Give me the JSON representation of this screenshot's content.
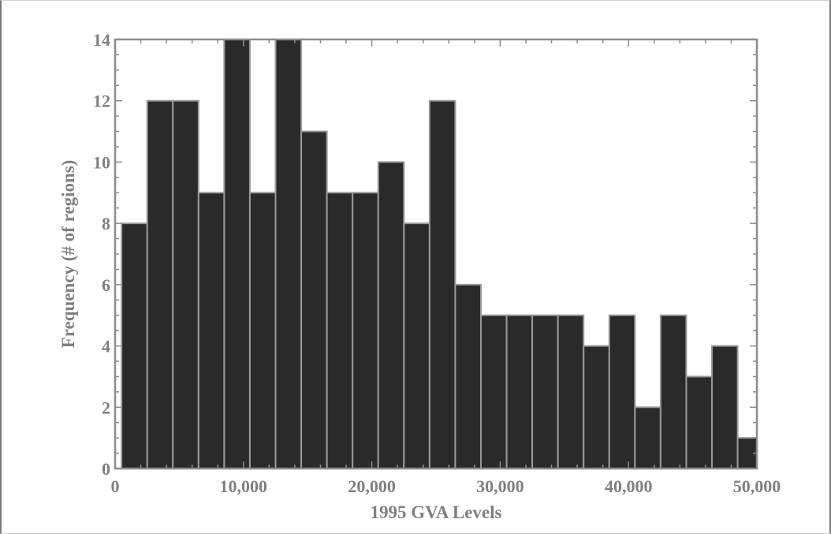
{
  "chart_data": {
    "type": "histogram",
    "title": "",
    "xlabel": "1995 GVA Levels",
    "ylabel": "Frequency (# of regions)",
    "xlim": [
      0,
      50000
    ],
    "ylim": [
      0,
      14
    ],
    "bin_width": 2000,
    "bins": [
      {
        "start": 500,
        "end": 2500,
        "count": 8
      },
      {
        "start": 2500,
        "end": 4500,
        "count": 12
      },
      {
        "start": 4500,
        "end": 6500,
        "count": 12
      },
      {
        "start": 6500,
        "end": 8500,
        "count": 9
      },
      {
        "start": 8500,
        "end": 10500,
        "count": 14
      },
      {
        "start": 10500,
        "end": 12500,
        "count": 9
      },
      {
        "start": 12500,
        "end": 14500,
        "count": 14
      },
      {
        "start": 14500,
        "end": 16500,
        "count": 11
      },
      {
        "start": 16500,
        "end": 18500,
        "count": 9
      },
      {
        "start": 18500,
        "end": 20500,
        "count": 9
      },
      {
        "start": 20500,
        "end": 22500,
        "count": 10
      },
      {
        "start": 22500,
        "end": 24500,
        "count": 8
      },
      {
        "start": 24500,
        "end": 26500,
        "count": 12
      },
      {
        "start": 26500,
        "end": 28500,
        "count": 6
      },
      {
        "start": 28500,
        "end": 30500,
        "count": 5
      },
      {
        "start": 30500,
        "end": 32500,
        "count": 5
      },
      {
        "start": 32500,
        "end": 34500,
        "count": 5
      },
      {
        "start": 34500,
        "end": 36500,
        "count": 5
      },
      {
        "start": 36500,
        "end": 38500,
        "count": 4
      },
      {
        "start": 38500,
        "end": 40500,
        "count": 5
      },
      {
        "start": 40500,
        "end": 42500,
        "count": 2
      },
      {
        "start": 42500,
        "end": 44500,
        "count": 5
      },
      {
        "start": 44500,
        "end": 46500,
        "count": 3
      },
      {
        "start": 46500,
        "end": 48500,
        "count": 4
      },
      {
        "start": 48500,
        "end": 50000,
        "count": 1
      }
    ],
    "xticks": [
      {
        "value": 0,
        "label": "0"
      },
      {
        "value": 10000,
        "label": "10,000"
      },
      {
        "value": 20000,
        "label": "20,000"
      },
      {
        "value": 30000,
        "label": "30,000"
      },
      {
        "value": 40000,
        "label": "40,000"
      },
      {
        "value": 50000,
        "label": "50,000"
      }
    ],
    "yticks": [
      {
        "value": 0,
        "label": "0"
      },
      {
        "value": 2,
        "label": "2"
      },
      {
        "value": 4,
        "label": "4"
      },
      {
        "value": 6,
        "label": "6"
      },
      {
        "value": 8,
        "label": "8"
      },
      {
        "value": 10,
        "label": "10"
      },
      {
        "value": 12,
        "label": "12"
      },
      {
        "value": 14,
        "label": "14"
      }
    ],
    "grid": false,
    "legend": "none",
    "colors": {
      "bar_fill": "#2a2a2a",
      "bar_edge": "#9a9a9a",
      "axes": "#8c8c8c",
      "text": "#808080"
    }
  }
}
